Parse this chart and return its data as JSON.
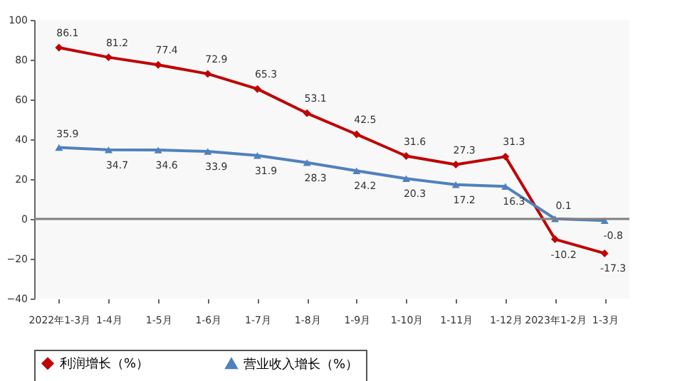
{
  "chart_data": {
    "type": "line",
    "categories": [
      "2022年1-3月",
      "1-4月",
      "1-5月",
      "1-6月",
      "1-7月",
      "1-8月",
      "1-9月",
      "1-10月",
      "1-11月",
      "1-12月",
      "2023年1-2月",
      "1-3月"
    ],
    "series": [
      {
        "name": "利润增长（%）",
        "color": "#c00000",
        "marker": "diamond",
        "values": [
          86.1,
          81.2,
          77.4,
          72.9,
          65.3,
          53.1,
          42.5,
          31.6,
          27.3,
          31.3,
          -10.2,
          -17.3
        ]
      },
      {
        "name": "营业收入增长（%）",
        "color": "#4f81bd",
        "marker": "triangle",
        "values": [
          35.9,
          34.7,
          34.6,
          33.9,
          31.9,
          28.3,
          24.2,
          20.3,
          17.2,
          16.3,
          0.1,
          -0.8
        ]
      }
    ],
    "ylim": [
      -40,
      100
    ],
    "yticks": [
      -40,
      -20,
      0,
      20,
      40,
      60,
      80,
      100
    ],
    "ref_lines": [
      {
        "axis": "y",
        "value": 0,
        "color": "#808080"
      }
    ],
    "grid": false,
    "legend": "bottom",
    "data_labels": true
  }
}
